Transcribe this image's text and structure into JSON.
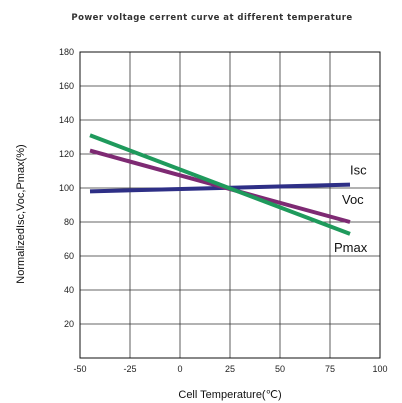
{
  "chart_data": {
    "type": "line",
    "title": "Power voltage cerrent curve at different temperature",
    "xlabel": "Cell Temperature(℃)",
    "ylabel": "NormalizedIsc,Voc,Pmax(%)",
    "xlim": [
      -50,
      100
    ],
    "ylim": [
      0,
      180
    ],
    "x_ticks": [
      "-50",
      "-25",
      "0",
      "25",
      "50",
      "75",
      "100"
    ],
    "y_ticks": [
      "20",
      "40",
      "60",
      "80",
      "100",
      "120",
      "140",
      "160",
      "180"
    ],
    "grid": true,
    "legend": "inline labels at right end of each line",
    "series": [
      {
        "name": "Isc",
        "x": [
          -45,
          85
        ],
        "values": [
          98,
          102
        ],
        "color": "#2e2f86"
      },
      {
        "name": "Voc",
        "x": [
          -45,
          85
        ],
        "values": [
          122,
          80
        ],
        "color": "#7e2a73"
      },
      {
        "name": "Pmax",
        "x": [
          -45,
          85
        ],
        "values": [
          131,
          73
        ],
        "color": "#1f9a5c"
      }
    ]
  }
}
